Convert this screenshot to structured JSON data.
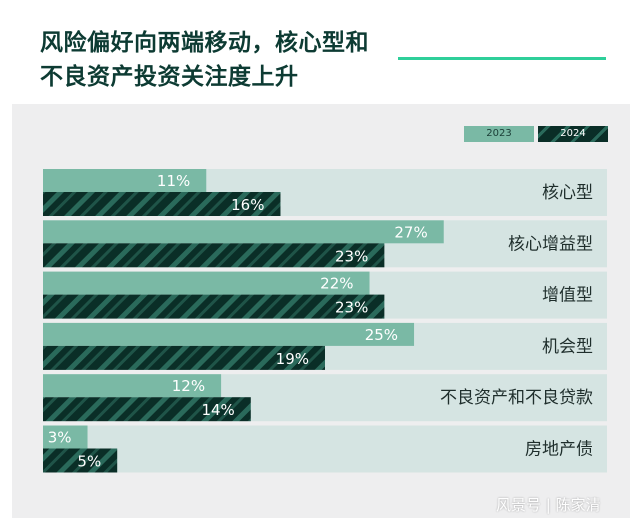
{
  "title_line1": "风险偏好向两端移动，核心型和",
  "title_line2": "不良资产投资关注度上升",
  "watermark": "风景号 | 陈家清",
  "colors": {
    "accent_line": "#2ecf9a",
    "bar_2023": "#7ab9a5",
    "bar_2024_dark": "#0a2e27",
    "bar_2024_stripe": "#2a6a5b",
    "row_bg": "#d5e4e2",
    "panel_bg": "#eeeeef"
  },
  "chart_data": {
    "type": "bar",
    "orientation": "horizontal",
    "title": "风险偏好向两端移动，核心型和不良资产投资关注度上升",
    "categories": [
      "核心型",
      "核心增益型",
      "增值型",
      "机会型",
      "不良资产和不良贷款",
      "房地产债"
    ],
    "series": [
      {
        "name": "2023",
        "values": [
          11,
          27,
          22,
          25,
          12,
          3
        ],
        "labels": [
          "11%",
          "27%",
          "22%",
          "25%",
          "12%",
          "3%"
        ]
      },
      {
        "name": "2024",
        "values": [
          16,
          23,
          23,
          19,
          14,
          5
        ],
        "labels": [
          "16%",
          "23%",
          "23%",
          "19%",
          "14%",
          "5%"
        ]
      }
    ],
    "xlim": [
      0,
      38
    ],
    "grid": false,
    "legend_position": "top-right"
  }
}
